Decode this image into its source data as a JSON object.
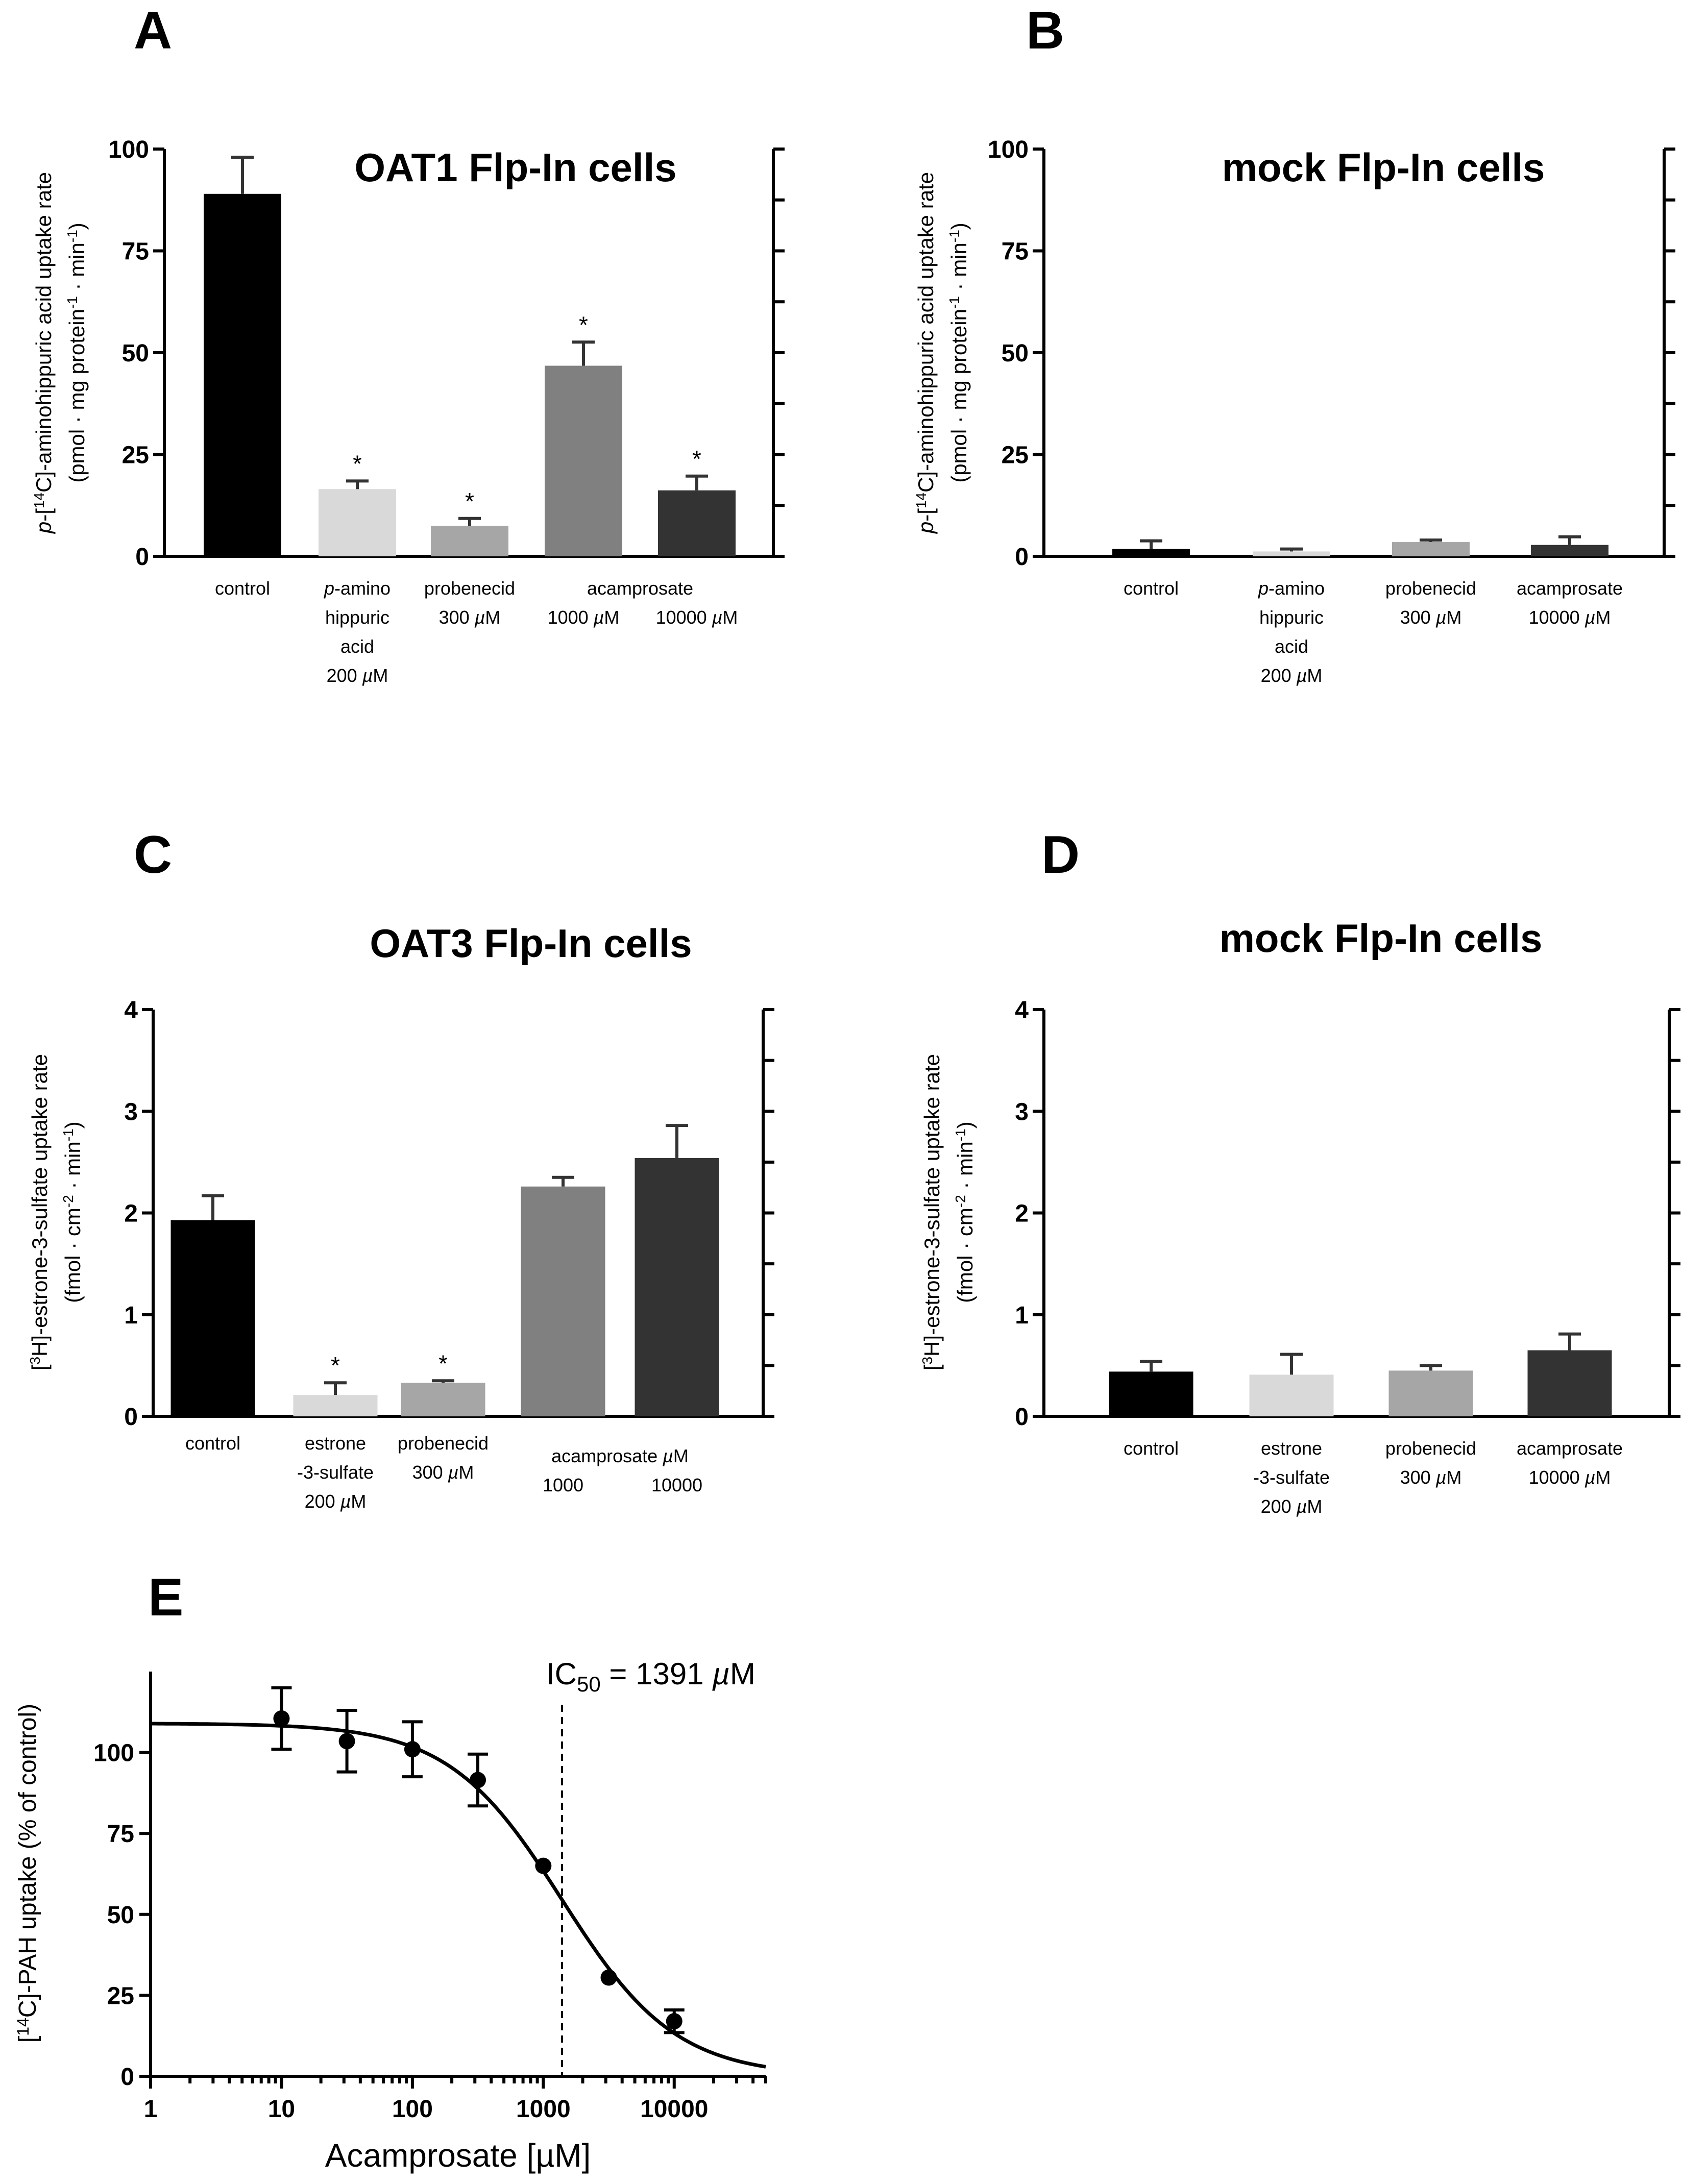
{
  "chart_data": [
    {
      "panel": "A",
      "type": "bar",
      "title": "OAT1 Flp-In cells",
      "ylabel_line1": "p-[14C]-aminohippuric acid uptake rate",
      "ylabel_line2": "(pmol · mg protein-1 · min-1)",
      "ylim": [
        0,
        100
      ],
      "yticks": [
        0,
        25,
        50,
        75,
        100
      ],
      "categories": [
        {
          "lines": [
            "control"
          ]
        },
        {
          "lines": [
            "p-amino",
            "hippuric",
            "acid",
            "200 µM"
          ]
        },
        {
          "lines": [
            "probenecid",
            "300 µM"
          ]
        },
        {
          "lines": [
            "1000 µM"
          ]
        },
        {
          "lines": [
            "10000 µM"
          ]
        }
      ],
      "group_labels": [
        {
          "text": "acamprosate",
          "spans": [
            3,
            4
          ]
        }
      ],
      "values": [
        89,
        16.5,
        7.5,
        46.8,
        16.2
      ],
      "errors": [
        9,
        2,
        1.8,
        5.8,
        3.5
      ],
      "significant": [
        false,
        true,
        true,
        true,
        true
      ],
      "colors": [
        "#000000",
        "#d9d9d9",
        "#a6a6a6",
        "#808080",
        "#333333"
      ]
    },
    {
      "panel": "B",
      "type": "bar",
      "title": "mock Flp-In cells",
      "ylabel_line1": "p-[14C]-aminohippuric acid uptake rate",
      "ylabel_line2": "(pmol · mg protein-1 · min-1)",
      "ylim": [
        0,
        100
      ],
      "yticks": [
        0,
        25,
        50,
        75,
        100
      ],
      "categories": [
        {
          "lines": [
            "control"
          ]
        },
        {
          "lines": [
            "p-amino",
            "hippuric",
            "acid",
            "200 µM"
          ]
        },
        {
          "lines": [
            "probenecid",
            "300 µM"
          ]
        },
        {
          "lines": [
            "acamprosate",
            "10000 µM"
          ]
        }
      ],
      "group_labels": [],
      "values": [
        1.8,
        1.2,
        3.5,
        2.8
      ],
      "errors": [
        2,
        0.6,
        0.5,
        2
      ],
      "significant": [
        false,
        false,
        false,
        false
      ],
      "colors": [
        "#000000",
        "#d9d9d9",
        "#a6a6a6",
        "#333333"
      ]
    },
    {
      "panel": "C",
      "type": "bar",
      "title": "OAT3 Flp-In cells",
      "ylabel_line1": "[3H]-estrone-3-sulfate uptake rate",
      "ylabel_line2": "(fmol · cm-2 · min-1)",
      "ylim": [
        0,
        4
      ],
      "yticks": [
        0,
        1,
        2,
        3,
        4
      ],
      "categories": [
        {
          "lines": [
            "control"
          ]
        },
        {
          "lines": [
            "estrone",
            "-3-sulfate",
            "200 µM"
          ]
        },
        {
          "lines": [
            "probenecid",
            "300 µM"
          ]
        },
        {
          "lines": [
            "1000"
          ]
        },
        {
          "lines": [
            "10000"
          ]
        }
      ],
      "group_labels": [
        {
          "text": "acamprosate µM",
          "spans": [
            3,
            4
          ]
        }
      ],
      "values": [
        1.93,
        0.21,
        0.33,
        2.26,
        2.54
      ],
      "errors": [
        0.24,
        0.12,
        0.02,
        0.09,
        0.32
      ],
      "significant": [
        false,
        true,
        true,
        false,
        false
      ],
      "colors": [
        "#000000",
        "#d9d9d9",
        "#a6a6a6",
        "#808080",
        "#333333"
      ]
    },
    {
      "panel": "D",
      "type": "bar",
      "title": "mock Flp-In cells",
      "ylabel_line1": "[3H]-estrone-3-sulfate uptake rate",
      "ylabel_line2": "(fmol · cm-2 · min-1)",
      "ylim": [
        0,
        4
      ],
      "yticks": [
        0,
        1,
        2,
        3,
        4
      ],
      "categories": [
        {
          "lines": [
            "control"
          ]
        },
        {
          "lines": [
            "estrone",
            "-3-sulfate",
            "200 µM"
          ]
        },
        {
          "lines": [
            "probenecid",
            "300 µM"
          ]
        },
        {
          "lines": [
            "acamprosate",
            "10000 µM"
          ]
        }
      ],
      "group_labels": [],
      "values": [
        0.44,
        0.41,
        0.45,
        0.65
      ],
      "errors": [
        0.1,
        0.2,
        0.05,
        0.16
      ],
      "significant": [
        false,
        false,
        false,
        false
      ],
      "colors": [
        "#000000",
        "#d9d9d9",
        "#a6a6a6",
        "#333333"
      ]
    },
    {
      "panel": "E",
      "type": "scatter",
      "xscale": "log",
      "xlim": [
        1,
        50000
      ],
      "ylim": [
        0,
        125
      ],
      "xticks": [
        1,
        10,
        100,
        1000,
        10000
      ],
      "yticks": [
        0,
        25,
        50,
        75,
        100
      ],
      "xlabel": "Acamprosate [µM]",
      "ylabel": "[14C]-PAH uptake (% of control)",
      "x": [
        10,
        31.6,
        100,
        316,
        1000,
        3162,
        10000
      ],
      "y": [
        110.5,
        103.5,
        101,
        91.5,
        65,
        30.5,
        17
      ],
      "yerr": [
        9.5,
        9.5,
        8.5,
        8,
        0,
        0,
        3.5
      ],
      "fit": {
        "top": 109,
        "bottom": 0,
        "ic50": 1391,
        "hill": 1
      },
      "annotation": "IC50 = 1391 µM",
      "ic50_line_x": 1391
    }
  ]
}
